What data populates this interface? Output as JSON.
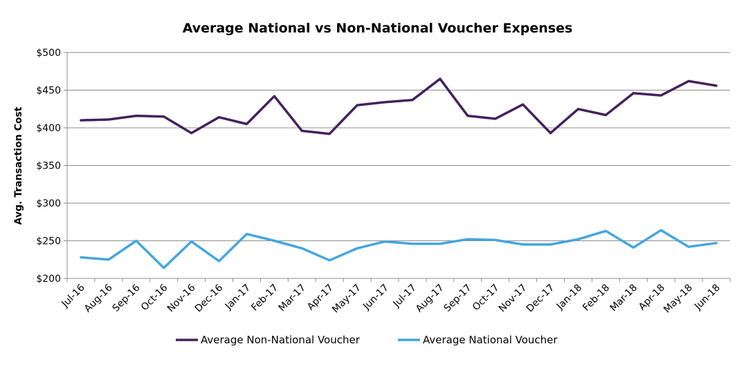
{
  "chart_data": {
    "type": "line",
    "title": "Average National vs Non-National Voucher Expenses",
    "xlabel": "",
    "ylabel": "Avg. Transaction Cost",
    "ylim": [
      200,
      500
    ],
    "y_ticks": [
      "$200",
      "$250",
      "$300",
      "$350",
      "$400",
      "$450",
      "$500"
    ],
    "grid": true,
    "legend_position": "bottom",
    "categories": [
      "Jul-16",
      "Aug-16",
      "Sep-16",
      "Oct-16",
      "Nov-16",
      "Dec-16",
      "Jan-17",
      "Feb-17",
      "Mar-17",
      "Apr-17",
      "May-17",
      "Jun-17",
      "Jul-17",
      "Aug-17",
      "Sep-17",
      "Oct-17",
      "Nov-17",
      "Dec-17",
      "Jan-18",
      "Feb-18",
      "Mar-18",
      "Apr-18",
      "May-18",
      "Jun-18"
    ],
    "series": [
      {
        "name": "Average Non-National Voucher",
        "color": "#44215e",
        "values": [
          410,
          411,
          416,
          415,
          393,
          414,
          405,
          442,
          396,
          392,
          430,
          434,
          437,
          465,
          416,
          412,
          431,
          393,
          425,
          417,
          446,
          443,
          462,
          456
        ]
      },
      {
        "name": "Average National Voucher",
        "color": "#43a6de",
        "values": [
          228,
          225,
          250,
          214,
          249,
          223,
          259,
          250,
          240,
          224,
          240,
          249,
          246,
          246,
          252,
          251,
          245,
          245,
          252,
          263,
          241,
          264,
          242,
          247
        ]
      }
    ]
  }
}
